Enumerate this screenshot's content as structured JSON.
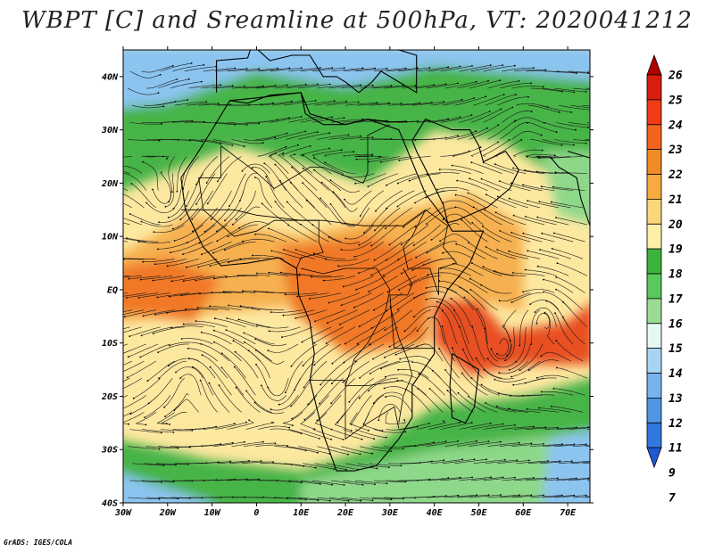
{
  "title": "WBPT [C] and Sreamline at 500hPa, VT: 2020041212",
  "credit": "GrADS: IGES/COLA",
  "map": {
    "lon_range": [
      -30,
      75
    ],
    "lat_range": [
      -40,
      45
    ],
    "lat_ticks": [
      {
        "value": 40,
        "label": "40N"
      },
      {
        "value": 30,
        "label": "30N"
      },
      {
        "value": 20,
        "label": "20N"
      },
      {
        "value": 10,
        "label": "10N"
      },
      {
        "value": 0,
        "label": "EQ"
      },
      {
        "value": -10,
        "label": "10S"
      },
      {
        "value": -20,
        "label": "20S"
      },
      {
        "value": -30,
        "label": "30S"
      },
      {
        "value": -40,
        "label": "40S"
      }
    ],
    "lon_ticks": [
      {
        "value": -30,
        "label": "30W"
      },
      {
        "value": -20,
        "label": "20W"
      },
      {
        "value": -10,
        "label": "10W"
      },
      {
        "value": 0,
        "label": "0"
      },
      {
        "value": 10,
        "label": "10E"
      },
      {
        "value": 20,
        "label": "20E"
      },
      {
        "value": 30,
        "label": "30E"
      },
      {
        "value": 40,
        "label": "40E"
      },
      {
        "value": 50,
        "label": "50E"
      },
      {
        "value": 60,
        "label": "60E"
      },
      {
        "value": 70,
        "label": "70E"
      }
    ]
  },
  "colorbar": {
    "labels": [
      "26",
      "25",
      "24",
      "23",
      "22",
      "21",
      "20",
      "19",
      "18",
      "17",
      "16",
      "15",
      "14",
      "13",
      "12",
      "11",
      "9",
      "7"
    ],
    "colors": [
      "#b00000",
      "#d81e0e",
      "#f03c16",
      "#f0641e",
      "#f08c28",
      "#f6aa40",
      "#fad77a",
      "#fff0a8",
      "#3cb43c",
      "#5ac85a",
      "#9adc94",
      "#e6f8f4",
      "#a8d4f4",
      "#78b4ec",
      "#5096e4",
      "#3278dc",
      "#1e5ad2"
    ]
  },
  "palette": {
    "ocean_cold": "#8cc4f0",
    "green": "#46b446",
    "light_green": "#8ed88a",
    "yellow": "#fde8a0",
    "orange": "#f6b050",
    "deep_orange": "#f07828",
    "red": "#e85020"
  }
}
